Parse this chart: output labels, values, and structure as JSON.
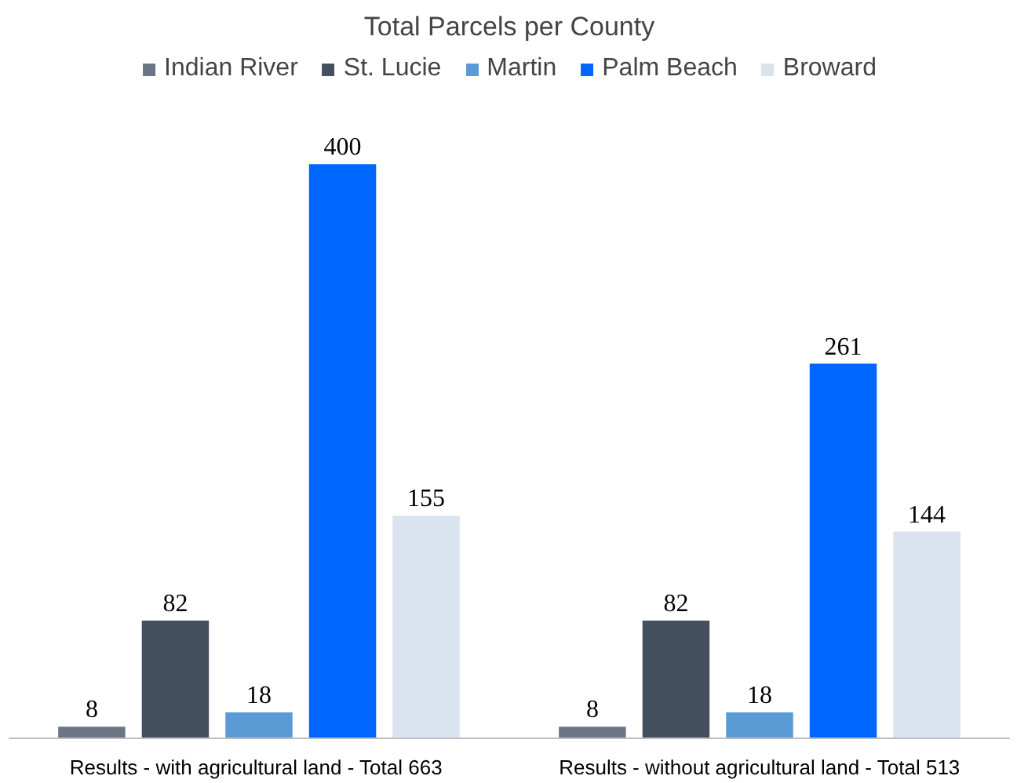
{
  "chart_data": {
    "type": "bar",
    "title": "Total Parcels per County",
    "categories": [
      "Results - with agricultural land  - Total 663",
      "Results - without agricultural land - Total 513"
    ],
    "series": [
      {
        "name": "Indian River",
        "color": "#6b7584",
        "values": [
          8,
          8
        ]
      },
      {
        "name": "St. Lucie",
        "color": "#44505f",
        "values": [
          82,
          82
        ]
      },
      {
        "name": "Martin",
        "color": "#5b9bd5",
        "values": [
          18,
          18
        ]
      },
      {
        "name": "Palm Beach",
        "color": "#0066ff",
        "values": [
          400,
          261
        ]
      },
      {
        "name": "Broward",
        "color": "#dae3f0",
        "values": [
          155,
          144
        ]
      }
    ],
    "data_labels": true,
    "legend": "top",
    "grid": false
  }
}
